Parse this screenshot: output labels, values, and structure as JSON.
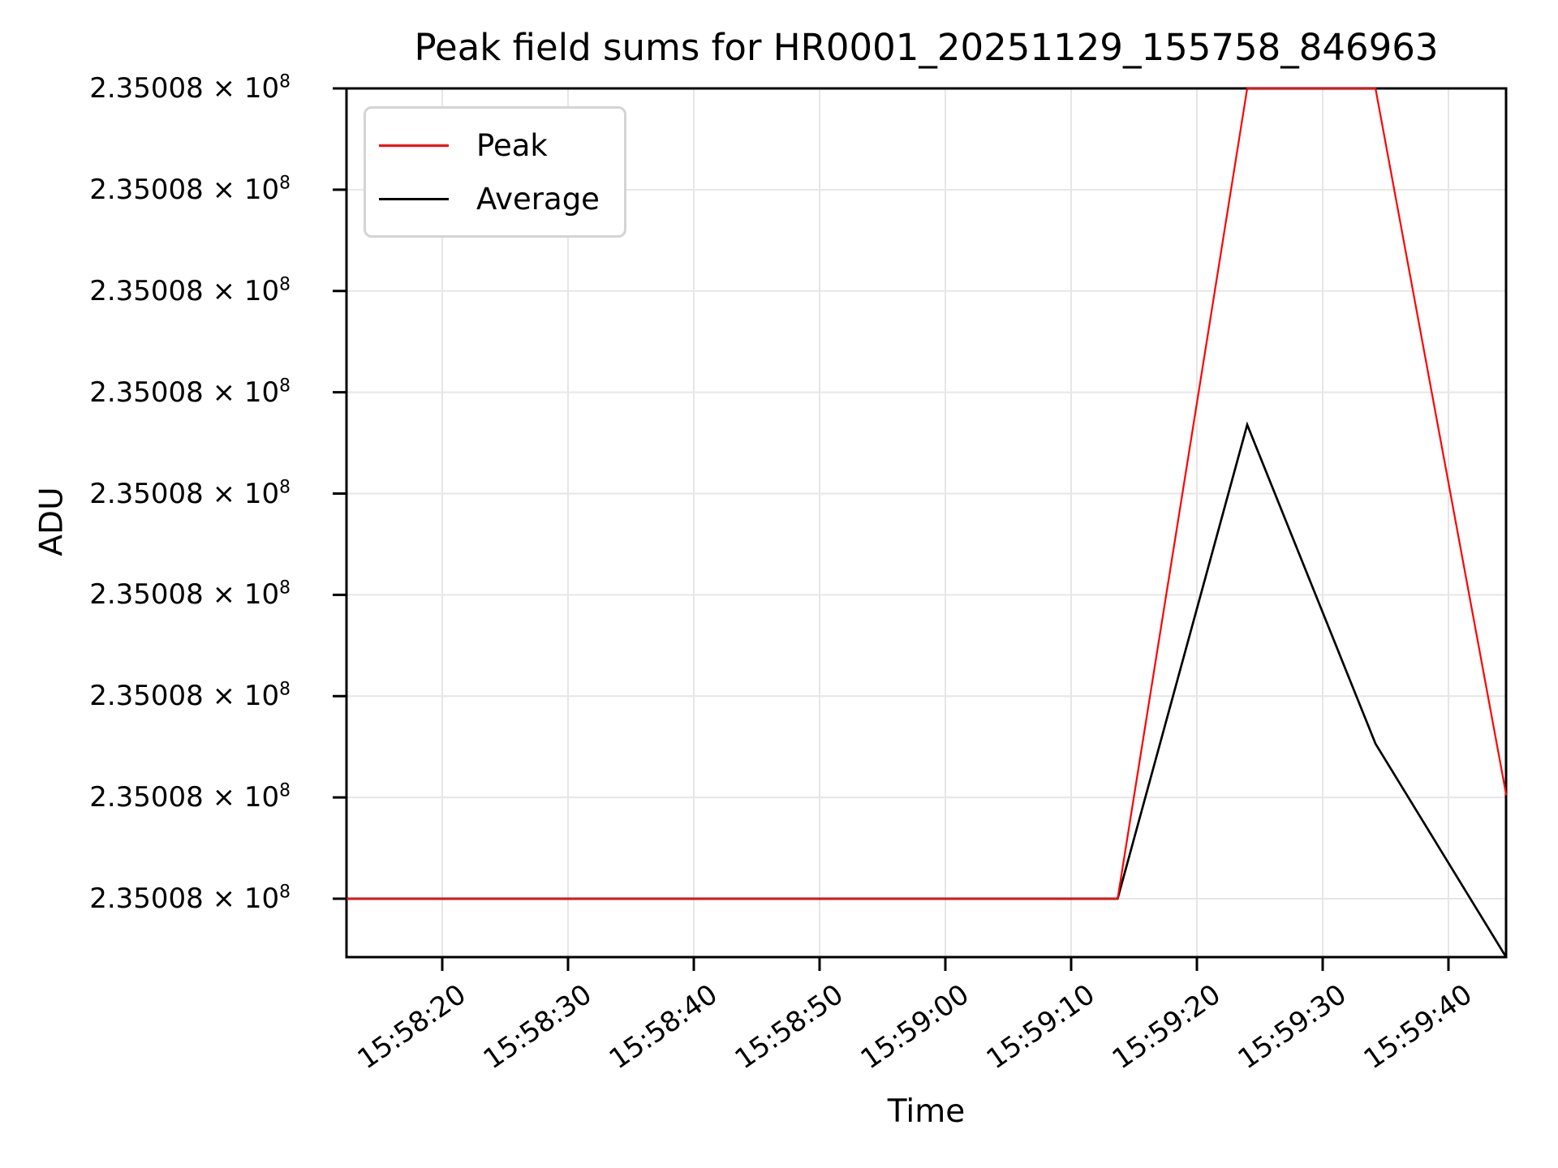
{
  "title": "Peak field sums for HR0001_20251129_155758_846963",
  "axes": {
    "xlabel": "Time",
    "ylabel": "ADU",
    "x_tick_labels": [
      "15:58:20",
      "15:58:30",
      "15:58:40",
      "15:58:50",
      "15:59:00",
      "15:59:10",
      "15:59:20",
      "15:59:30",
      "15:59:40"
    ],
    "y_tick_count": 9,
    "y_tick_label_mantissa": "2.35008 × 10",
    "y_tick_label_exponent": "8",
    "y_tick_label_full": "2.35008 × 10^8"
  },
  "legend": {
    "entries": [
      {
        "label": "Peak",
        "color": "#ff0000"
      },
      {
        "label": "Average",
        "color": "#000000"
      }
    ]
  },
  "colors": {
    "background": "#ffffff",
    "spine": "#000000",
    "grid": "#e6e6e6",
    "tick": "#000000",
    "peak_line": "#ff0000",
    "average_line": "#000000",
    "legend_border": "#d4d4d4"
  },
  "chart_data": {
    "type": "line",
    "title": "Peak field sums for HR0001_20251129_155758_846963",
    "xlabel": "Time",
    "ylabel": "ADU",
    "grid": true,
    "legend_position": "upper left",
    "x_tick_labels": [
      "15:58:20",
      "15:58:30",
      "15:58:40",
      "15:58:50",
      "15:59:00",
      "15:59:10",
      "15:59:20",
      "15:59:30",
      "15:59:40"
    ],
    "x_tick_interval_sec": 10,
    "y_tick_labels_all_identical": "2.35008 × 10^8",
    "y_units_note": "y values are in units of one y-tick interval above the lowest tick (all tick labels render identically as 2.35008 × 10^8); axis top = 8.0, axis bottom = -0.58",
    "y_axis_range_tick_units": [
      -0.58,
      8.0
    ],
    "x_seconds_from_first_tick": [
      -7.6,
      53.7,
      64.0,
      74.2,
      84.6
    ],
    "series": [
      {
        "name": "Peak",
        "color": "#ff0000",
        "x_sec": [
          -7.6,
          53.7,
          64.0,
          74.2,
          84.6
        ],
        "y_tick_units": [
          0,
          0,
          8.0,
          8.0,
          1.02
        ],
        "clipped_at_top": true
      },
      {
        "name": "Average",
        "color": "#000000",
        "x_sec": [
          -7.6,
          53.7,
          64.0,
          74.2,
          84.6
        ],
        "y_tick_units": [
          0,
          0,
          4.68,
          1.53,
          -0.58
        ]
      }
    ]
  }
}
